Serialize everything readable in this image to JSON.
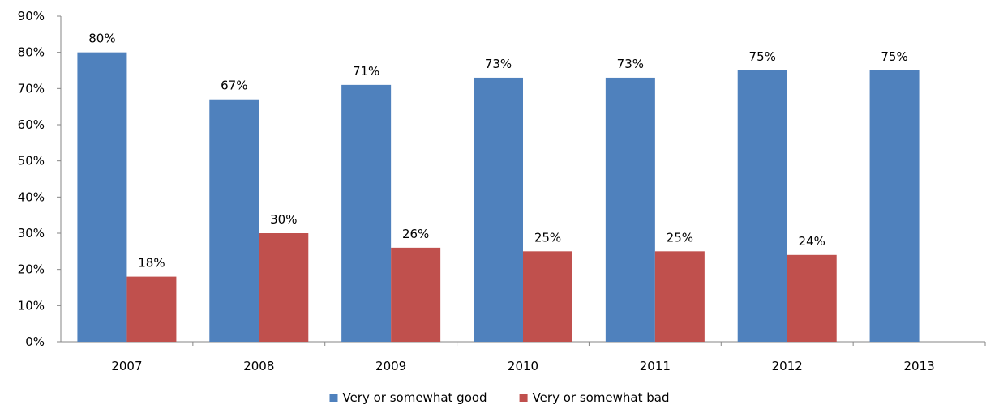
{
  "chart_data": {
    "type": "bar",
    "categories": [
      "2007",
      "2008",
      "2009",
      "2010",
      "2011",
      "2012",
      "2013"
    ],
    "series": [
      {
        "name": "Very or somewhat good",
        "color": "#4f81bd",
        "values": [
          80,
          67,
          71,
          73,
          73,
          75,
          75
        ]
      },
      {
        "name": "Very or somewhat bad",
        "color": "#c0504d",
        "values": [
          18,
          30,
          26,
          25,
          25,
          24,
          null
        ]
      }
    ],
    "data_labels": [
      [
        "80%",
        "67%",
        "71%",
        "73%",
        "73%",
        "75%",
        "75%"
      ],
      [
        "18%",
        "30%",
        "26%",
        "25%",
        "25%",
        "24%",
        ""
      ]
    ],
    "ylim": [
      0,
      90
    ],
    "y_ticks": [
      0,
      10,
      20,
      30,
      40,
      50,
      60,
      70,
      80,
      90
    ],
    "y_tick_labels": [
      "0%",
      "10%",
      "20%",
      "30%",
      "40%",
      "50%",
      "60%",
      "70%",
      "80%",
      "90%"
    ],
    "grid": false,
    "legend_position": "bottom"
  }
}
